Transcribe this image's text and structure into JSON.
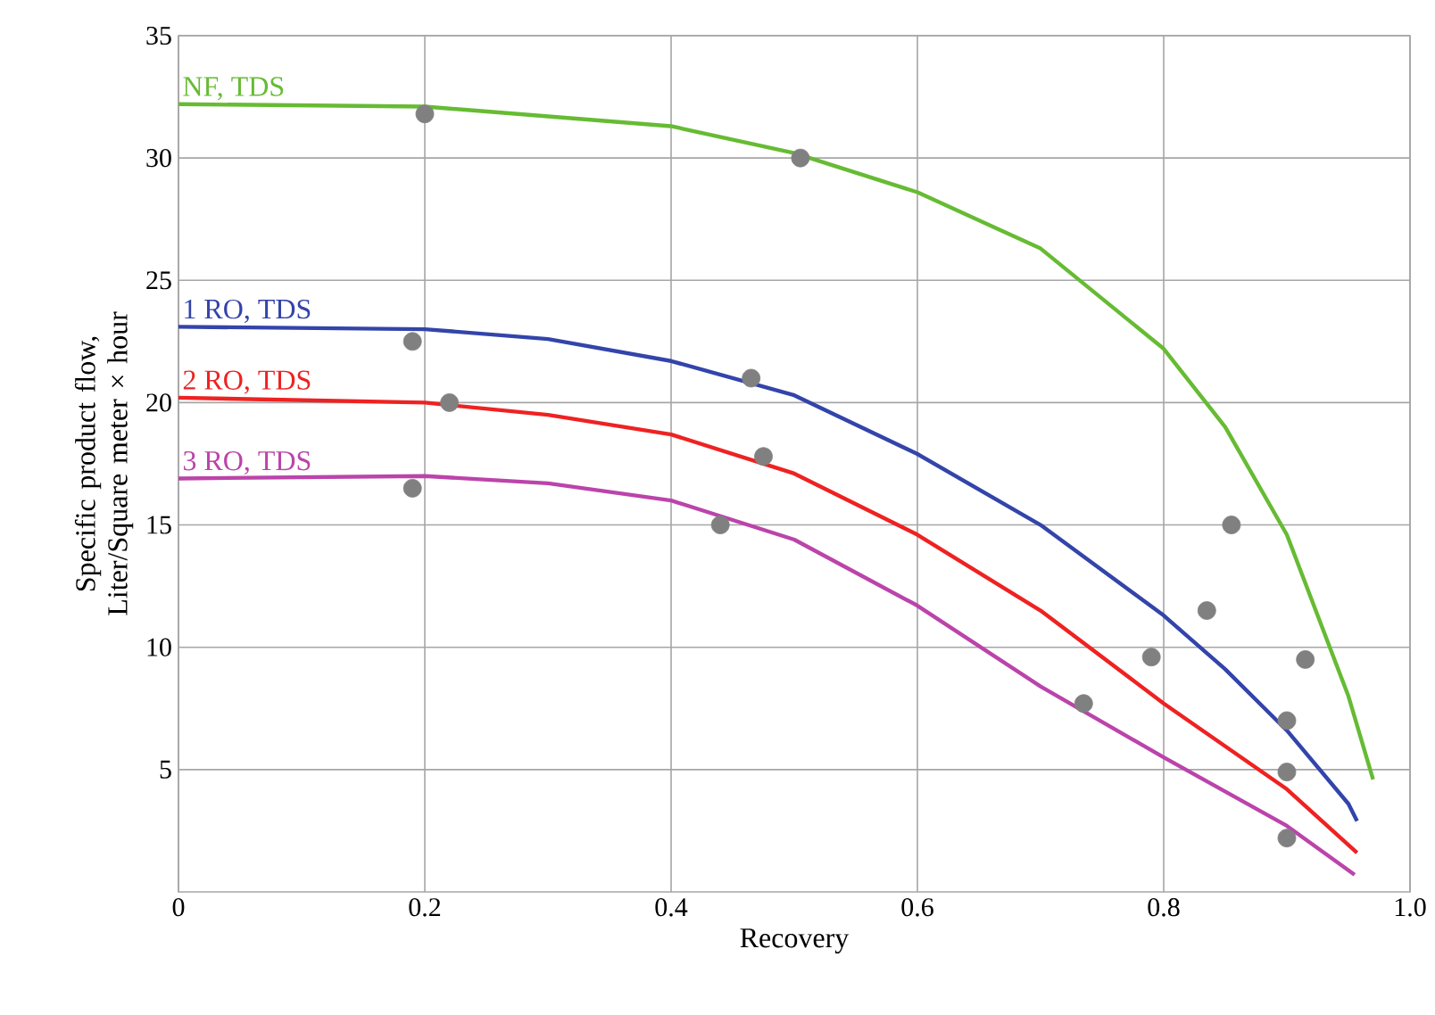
{
  "chart_data": {
    "type": "line",
    "xlabel": "Recovery",
    "ylabel": "Specific product flow, Liter/Square meter × hour",
    "xlim": [
      0,
      1.0
    ],
    "ylim": [
      0,
      35
    ],
    "xticks": [
      0,
      0.2,
      0.4,
      0.6,
      0.8,
      {
        "value": 1.0,
        "label": "1.0"
      }
    ],
    "yticks": [
      5,
      10,
      15,
      20,
      25,
      30,
      35
    ],
    "grid": true,
    "series": [
      {
        "name": "NF, TDS",
        "color": "#66bb33",
        "marker": "none",
        "x": [
          0,
          0.2,
          0.3,
          0.4,
          0.5,
          0.6,
          0.7,
          0.8,
          0.85,
          0.9,
          0.95,
          0.97
        ],
        "values": [
          32.2,
          32.1,
          31.7,
          31.3,
          30.2,
          28.6,
          26.3,
          22.2,
          19.0,
          14.6,
          8.0,
          4.6
        ]
      },
      {
        "name": "1 RO, TDS",
        "color": "#3344aa",
        "marker": "none",
        "x": [
          0,
          0.2,
          0.3,
          0.4,
          0.5,
          0.6,
          0.7,
          0.8,
          0.85,
          0.9,
          0.95,
          0.957
        ],
        "values": [
          23.1,
          23.0,
          22.6,
          21.7,
          20.3,
          17.9,
          15.0,
          11.3,
          9.1,
          6.6,
          3.6,
          2.9
        ]
      },
      {
        "name": "2 RO, TDS",
        "color": "#ee2222",
        "marker": "none",
        "x": [
          0,
          0.2,
          0.3,
          0.4,
          0.5,
          0.6,
          0.7,
          0.8,
          0.9,
          0.957
        ],
        "values": [
          20.2,
          20.0,
          19.5,
          18.7,
          17.1,
          14.6,
          11.5,
          7.7,
          4.2,
          1.6
        ]
      },
      {
        "name": "3 RO, TDS",
        "color": "#bb44aa",
        "marker": "none",
        "x": [
          0,
          0.2,
          0.3,
          0.4,
          0.5,
          0.6,
          0.7,
          0.8,
          0.9,
          0.955
        ],
        "values": [
          16.9,
          17.0,
          16.7,
          16.0,
          14.4,
          11.7,
          8.4,
          5.5,
          2.7,
          0.7
        ]
      },
      {
        "type": "scatter",
        "color": "#808080",
        "marker": "circle",
        "x": [
          0.2,
          0.505,
          0.19,
          0.465,
          0.22,
          0.475,
          0.19,
          0.44,
          0.735,
          0.79,
          0.835,
          0.855,
          0.9,
          0.9,
          0.9,
          0.915
        ],
        "values": [
          31.8,
          30,
          22.5,
          21,
          20,
          17.8,
          16.5,
          15,
          7.7,
          9.6,
          11.5,
          15,
          7,
          4.9,
          2.2,
          9.5
        ]
      }
    ]
  }
}
